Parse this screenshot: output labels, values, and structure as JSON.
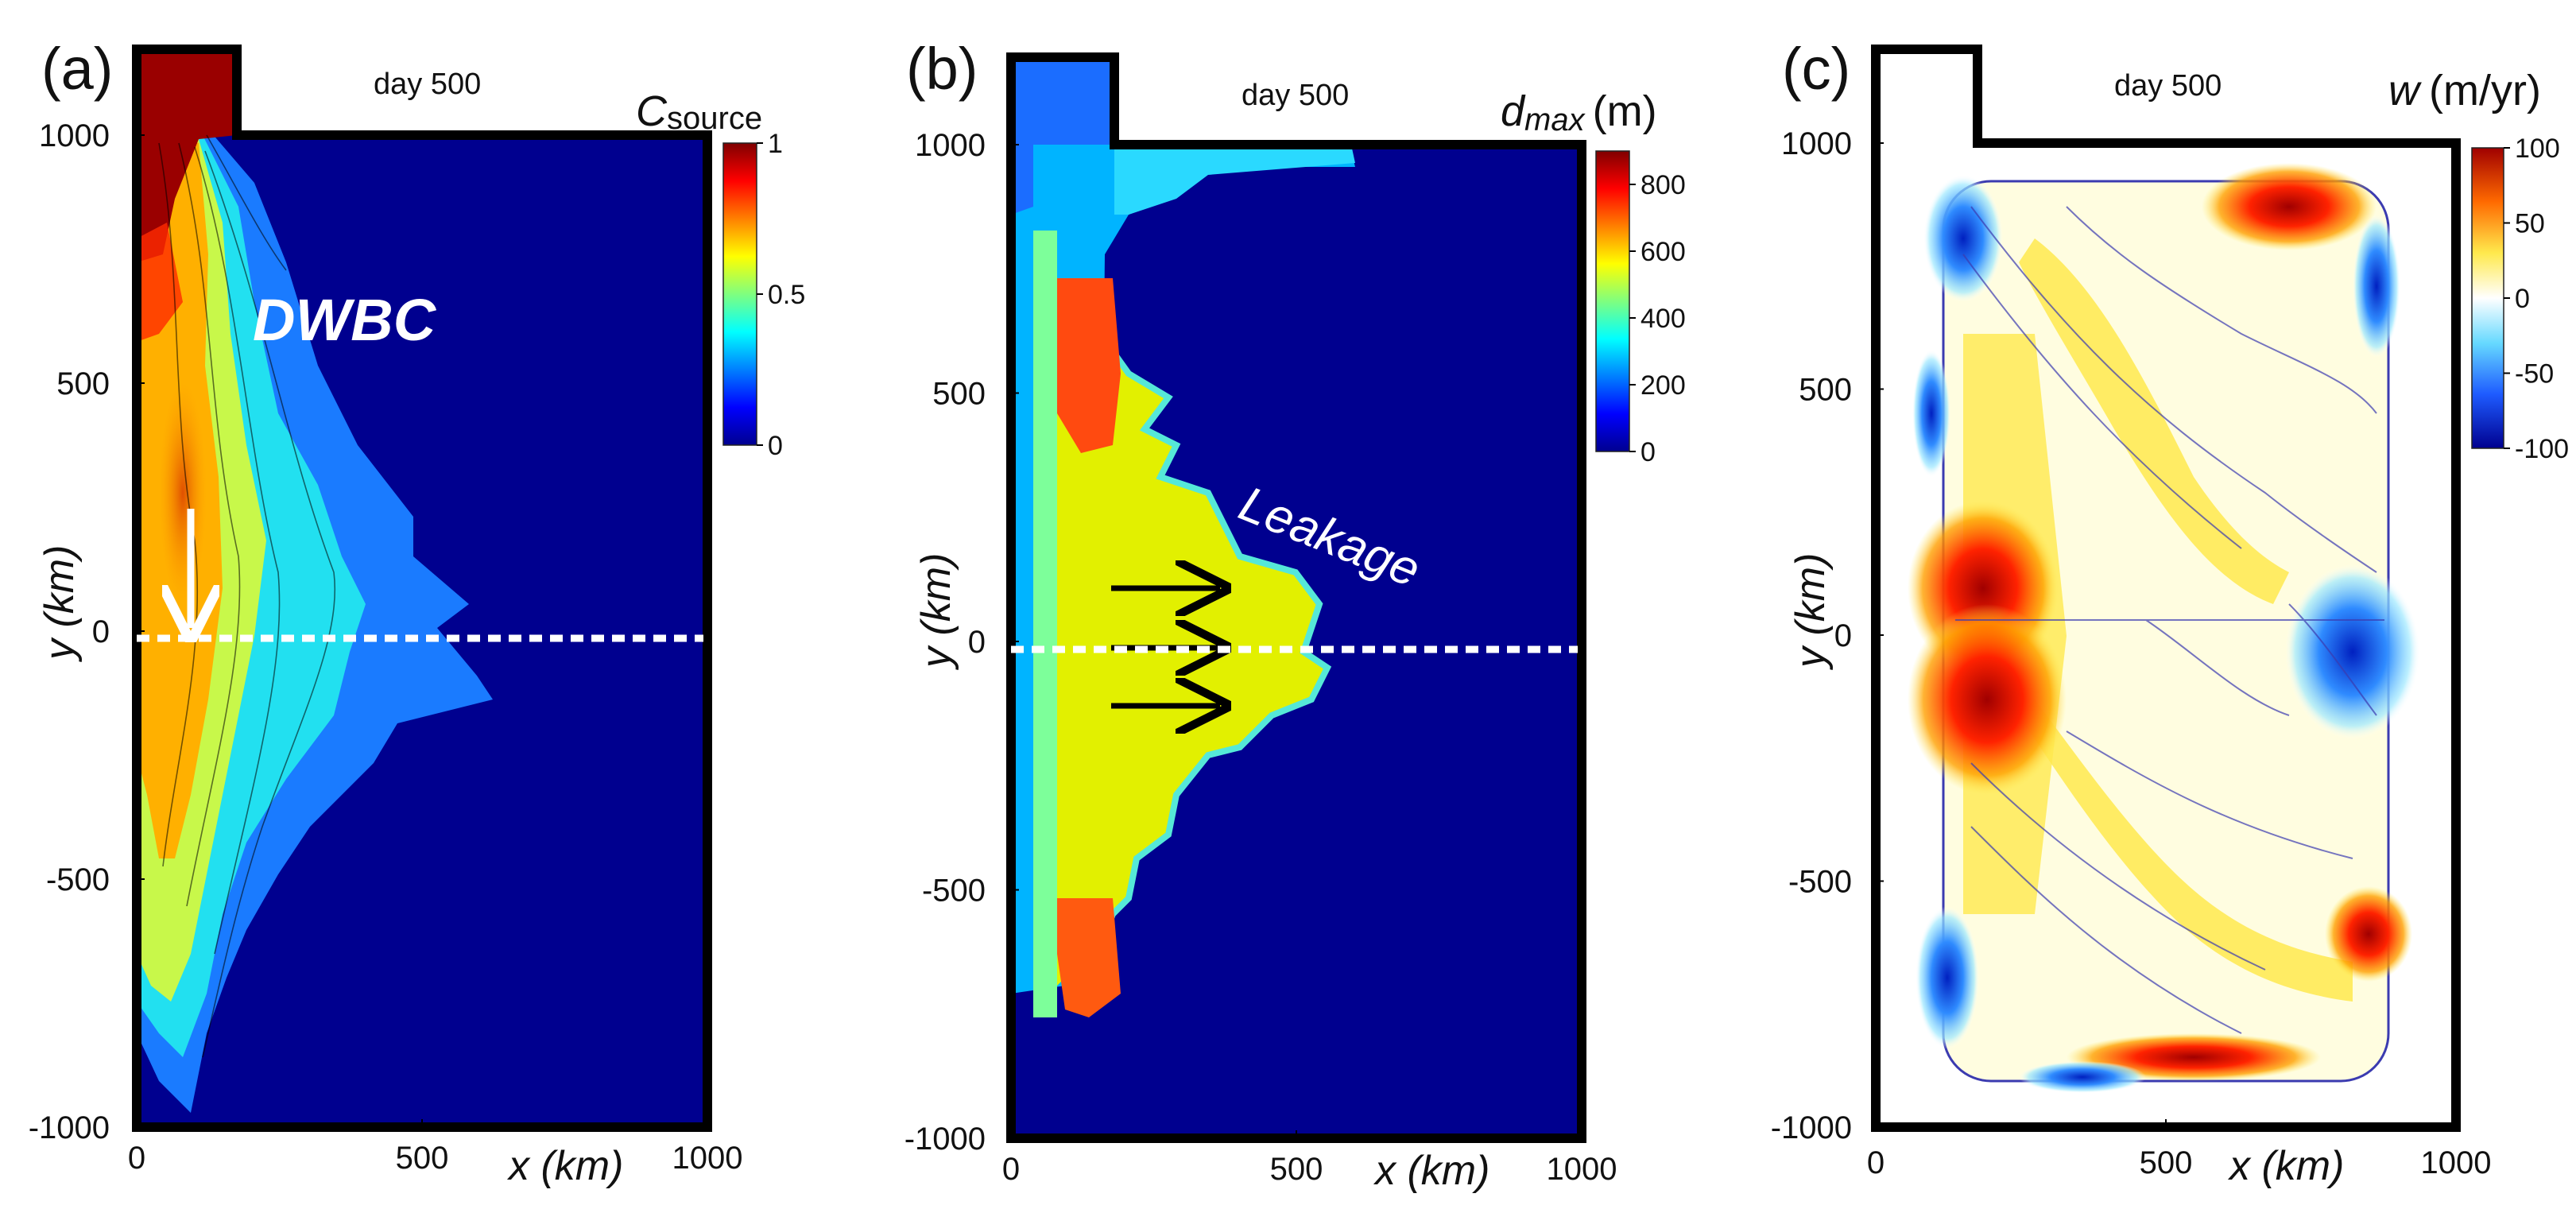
{
  "chart_data": [
    {
      "type": "heatmap",
      "panel_label": "(a)",
      "title": "day 500",
      "xlabel": "x (km)",
      "ylabel": "y (km)",
      "xlim": [
        0,
        1000
      ],
      "ylim": [
        -1000,
        1000
      ],
      "x_ticks": [
        "0",
        "500",
        "1000"
      ],
      "y_ticks": [
        "1000",
        "500",
        "0",
        "-500",
        "-1000"
      ],
      "colorbar": {
        "title_symbol": "C",
        "title_subscript": "source",
        "min": 0,
        "max": 1,
        "ticks": [
          "1",
          "0.5",
          "0"
        ]
      },
      "annotation": "DWBC",
      "section_line_y": 0
    },
    {
      "type": "heatmap",
      "panel_label": "(b)",
      "title": "day 500",
      "xlabel": "x (km)",
      "ylabel": "y (km)",
      "xlim": [
        0,
        1000
      ],
      "ylim": [
        -1000,
        1000
      ],
      "x_ticks": [
        "0",
        "500",
        "1000"
      ],
      "y_ticks": [
        "1000",
        "500",
        "0",
        "-500",
        "-1000"
      ],
      "colorbar": {
        "title_symbol": "d",
        "title_subscript": "max",
        "title_unit": "(m)",
        "min": 0,
        "max": 900,
        "ticks": [
          "800",
          "600",
          "400",
          "200",
          "0"
        ]
      },
      "annotation": "Leakage",
      "arrows_y": [
        100,
        0,
        -120
      ],
      "section_line_y": 0
    },
    {
      "type": "heatmap",
      "panel_label": "(c)",
      "title": "day 500",
      "xlabel": "x (km)",
      "ylabel": "y (km)",
      "xlim": [
        0,
        1000
      ],
      "ylim": [
        -1000,
        1000
      ],
      "x_ticks": [
        "0",
        "500",
        "1000"
      ],
      "y_ticks": [
        "1000",
        "500",
        "0",
        "-500",
        "-1000"
      ],
      "colorbar": {
        "title_symbol": "w",
        "title_unit": "(m/yr)",
        "min": -100,
        "max": 100,
        "ticks": [
          "100",
          "50",
          "0",
          "-50",
          "-100"
        ]
      }
    }
  ],
  "colors": {
    "background_blue": "#00008f",
    "boundary": "#000000",
    "section_line": "#ffffff"
  }
}
